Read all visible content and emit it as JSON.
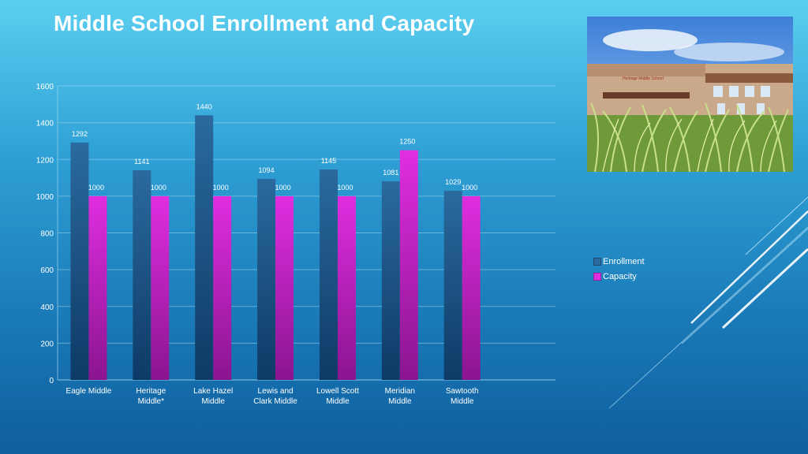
{
  "slide": {
    "title": "Middle School Enrollment and Capacity",
    "photo_sign_text": "Heritage Middle School"
  },
  "colors": {
    "enrollment_top": "#2a6a9e",
    "enrollment_bottom": "#0e3a66",
    "capacity_top": "#e02ee0",
    "capacity_bottom": "#8a1590",
    "text": "#ffffff",
    "grid": "#9fd6f0"
  },
  "chart_data": {
    "type": "bar",
    "title": "",
    "xlabel": "",
    "ylabel": "",
    "ylim": [
      0,
      1600
    ],
    "yticks": [
      0,
      200,
      400,
      600,
      800,
      1000,
      1200,
      1400,
      1600
    ],
    "grid": true,
    "legend_position": "right",
    "categories": [
      [
        "Eagle Middle"
      ],
      [
        "Heritage",
        "Middle*"
      ],
      [
        "Lake Hazel",
        "Middle"
      ],
      [
        "Lewis and",
        "Clark Middle"
      ],
      [
        "Lowell Scott",
        "Middle"
      ],
      [
        "Meridian",
        "Middle"
      ],
      [
        "Sawtooth",
        "Middle"
      ]
    ],
    "series": [
      {
        "name": "Enrollment",
        "values": [
          1292,
          1141,
          1440,
          1094,
          1145,
          1081,
          1029
        ]
      },
      {
        "name": "Capacity",
        "values": [
          1000,
          1000,
          1000,
          1000,
          1000,
          1250,
          1000
        ]
      }
    ]
  }
}
